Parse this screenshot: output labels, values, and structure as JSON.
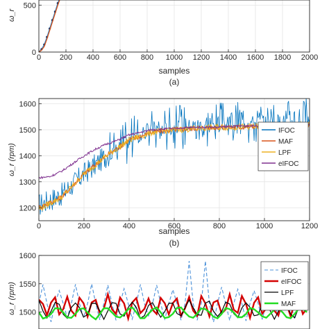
{
  "chart_data": [
    {
      "type": "line",
      "panel_label": "(a)",
      "xlabel": "samples",
      "ylabel": "ω_r",
      "xlim": [
        0,
        2000
      ],
      "ylim": [
        0,
        850
      ],
      "xticks": [
        "0",
        "200",
        "400",
        "600",
        "800",
        "1000",
        "1200",
        "1400",
        "1600",
        "1800",
        "2000"
      ],
      "yticks": [
        "0",
        "500"
      ],
      "grid": true,
      "series": [
        {
          "color": "#2a7fc4",
          "style": "solid-markers",
          "x": [
            0,
            20,
            40,
            60,
            80,
            100,
            120,
            140,
            160,
            180,
            200,
            220,
            240
          ],
          "y": [
            0,
            30,
            80,
            160,
            250,
            340,
            430,
            520,
            600,
            680,
            760,
            820,
            850
          ]
        },
        {
          "color": "#7e2f8e",
          "style": "solid",
          "x": [
            0,
            20,
            40,
            60,
            80,
            100,
            120,
            140,
            160,
            180,
            200,
            220,
            240
          ],
          "y": [
            560,
            570,
            600,
            650,
            720,
            790,
            850,
            880,
            880,
            880,
            880,
            880,
            880
          ]
        },
        {
          "color": "#d95319",
          "style": "solid",
          "x": [
            0,
            20,
            40,
            60,
            80,
            100,
            120,
            140,
            160,
            180,
            200,
            220,
            240
          ],
          "y": [
            0,
            20,
            60,
            140,
            230,
            320,
            410,
            500,
            580,
            660,
            740,
            800,
            840
          ]
        }
      ]
    },
    {
      "type": "line",
      "panel_label": "(b)",
      "xlabel": "samples",
      "ylabel": "ω_r (rpm)",
      "xlim": [
        0,
        1200
      ],
      "ylim": [
        1150,
        1620
      ],
      "xticks": [
        "0",
        "200",
        "400",
        "600",
        "800",
        "1000",
        "1200"
      ],
      "yticks": [
        "1200",
        "1300",
        "1400",
        "1500",
        "1600"
      ],
      "grid": true,
      "legend_position": "right",
      "series": [
        {
          "name": "IFOC",
          "color": "#0072bd",
          "x": [
            0,
            100,
            200,
            300,
            400,
            500,
            600,
            700,
            800,
            900,
            1000,
            1100,
            1200
          ],
          "y": [
            1210,
            1250,
            1330,
            1400,
            1460,
            1500,
            1510,
            1520,
            1520,
            1530,
            1530,
            1535,
            1540
          ],
          "noise": 90
        },
        {
          "name": "MAF",
          "color": "#d95319",
          "x": [
            0,
            100,
            200,
            300,
            400,
            500,
            600,
            700,
            800,
            900,
            1000,
            1100,
            1200
          ],
          "y": [
            1200,
            1240,
            1330,
            1400,
            1460,
            1490,
            1500,
            1505,
            1510,
            1510,
            1515,
            1515,
            1520
          ],
          "noise": 20
        },
        {
          "name": "LPF",
          "color": "#edb120",
          "x": [
            0,
            100,
            200,
            300,
            400,
            500,
            600,
            700,
            800,
            900,
            1000,
            1100,
            1200
          ],
          "y": [
            1195,
            1240,
            1330,
            1400,
            1460,
            1490,
            1500,
            1505,
            1510,
            1510,
            1515,
            1515,
            1520
          ],
          "noise": 25
        },
        {
          "name": "eIFOC",
          "color": "#7e2f8e",
          "x": [
            0,
            50,
            100,
            150,
            200,
            250,
            300,
            350,
            400,
            500,
            600,
            700,
            800,
            900,
            1000,
            1100,
            1200
          ],
          "y": [
            1315,
            1320,
            1340,
            1370,
            1400,
            1425,
            1445,
            1460,
            1480,
            1500,
            1505,
            1510,
            1510,
            1515,
            1515,
            1520,
            1520
          ],
          "noise": 8
        }
      ]
    },
    {
      "type": "line",
      "panel_label": "",
      "xlabel": "",
      "ylabel": "ω_r (rpm)",
      "ylim": [
        1470,
        1600
      ],
      "yticks": [
        "1500",
        "1550",
        "1600"
      ],
      "grid": true,
      "legend_position": "right",
      "series": [
        {
          "name": "IFOC",
          "color": "#4a90d9",
          "style": "dashed",
          "mean": 1515,
          "amp": 35,
          "period": 6
        },
        {
          "name": "eIFOC",
          "color": "#d40000",
          "style": "thick",
          "mean": 1510,
          "amp": 22,
          "period": 5
        },
        {
          "name": "LPF",
          "color": "#000000",
          "style": "solid",
          "mean": 1505,
          "amp": 18,
          "period": 7
        },
        {
          "name": "MAF",
          "color": "#22dd22",
          "style": "thick",
          "mean": 1498,
          "amp": 12,
          "period": 9
        }
      ]
    }
  ]
}
